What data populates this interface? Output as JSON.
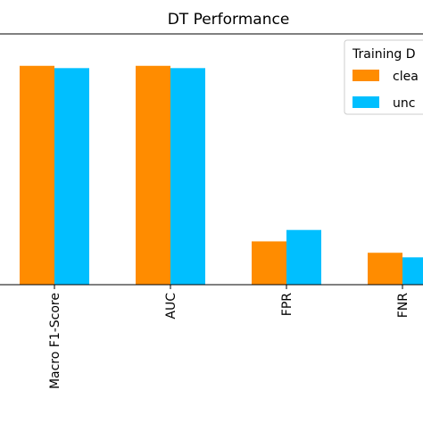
{
  "chart_data": {
    "type": "bar",
    "title": "DT Performance",
    "categories": [
      "Macro F1-Score",
      "AUC",
      "FPR",
      "FNR"
    ],
    "series": [
      {
        "name": "clea",
        "color": "#ff8c00",
        "values": [
          0.96,
          0.96,
          0.19,
          0.14
        ]
      },
      {
        "name": "unc",
        "color": "#00bfff",
        "values": [
          0.95,
          0.95,
          0.24,
          0.12
        ]
      }
    ],
    "ylim": [
      0,
      1.1
    ],
    "legend": {
      "title": "Training D",
      "placement": "top-right"
    },
    "grid": false
  }
}
